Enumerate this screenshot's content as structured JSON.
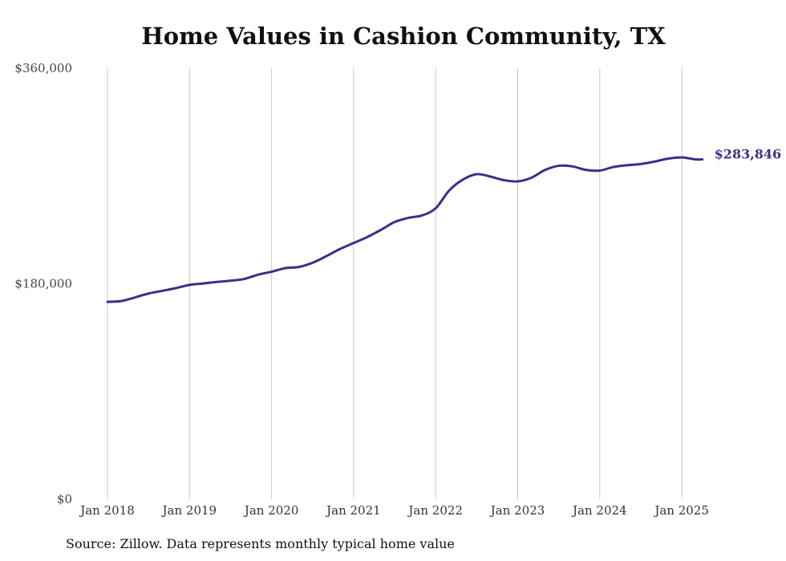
{
  "chart_data": {
    "type": "line",
    "title": "Home Values in Cashion Community, TX",
    "xlabel": "",
    "ylabel": "",
    "ylim": [
      0,
      360000
    ],
    "y_ticks": [
      {
        "value": 0,
        "label": "$0"
      },
      {
        "value": 180000,
        "label": "$180,000"
      },
      {
        "value": 360000,
        "label": "$360,000"
      }
    ],
    "x_ticks": [
      {
        "value": "2018-01",
        "label": "Jan 2018"
      },
      {
        "value": "2019-01",
        "label": "Jan 2019"
      },
      {
        "value": "2020-01",
        "label": "Jan 2020"
      },
      {
        "value": "2021-01",
        "label": "Jan 2021"
      },
      {
        "value": "2022-01",
        "label": "Jan 2022"
      },
      {
        "value": "2023-01",
        "label": "Jan 2023"
      },
      {
        "value": "2024-01",
        "label": "Jan 2024"
      },
      {
        "value": "2025-01",
        "label": "Jan 2025"
      }
    ],
    "grid": "vertical",
    "line_color": "#3b3089",
    "end_label": "$283,846",
    "series": [
      {
        "x": [
          "2018-01",
          "2018-03",
          "2018-05",
          "2018-07",
          "2018-09",
          "2018-11",
          "2019-01",
          "2019-03",
          "2019-05",
          "2019-07",
          "2019-09",
          "2019-11",
          "2020-01",
          "2020-03",
          "2020-05",
          "2020-07",
          "2020-09",
          "2020-11",
          "2021-01",
          "2021-03",
          "2021-05",
          "2021-07",
          "2021-09",
          "2021-11",
          "2022-01",
          "2022-03",
          "2022-05",
          "2022-07",
          "2022-09",
          "2022-11",
          "2023-01",
          "2023-03",
          "2023-05",
          "2023-07",
          "2023-09",
          "2023-11",
          "2024-01",
          "2024-03",
          "2024-05",
          "2024-07",
          "2024-09",
          "2024-11",
          "2025-01",
          "2025-03",
          "2025-04"
        ],
        "values": [
          164800,
          165500,
          168500,
          171800,
          174000,
          176300,
          179000,
          180200,
          181500,
          182500,
          184000,
          187500,
          190000,
          193000,
          194000,
          197500,
          203000,
          209000,
          214000,
          219000,
          225000,
          231500,
          235000,
          237000,
          243000,
          258000,
          267000,
          271500,
          269500,
          266500,
          265500,
          268500,
          275000,
          278500,
          278000,
          275000,
          274500,
          277500,
          279000,
          280000,
          282000,
          284500,
          285500,
          283846,
          283846
        ]
      }
    ]
  },
  "footer": {
    "source": "Source: Zillow. Data represents monthly typical home value"
  }
}
